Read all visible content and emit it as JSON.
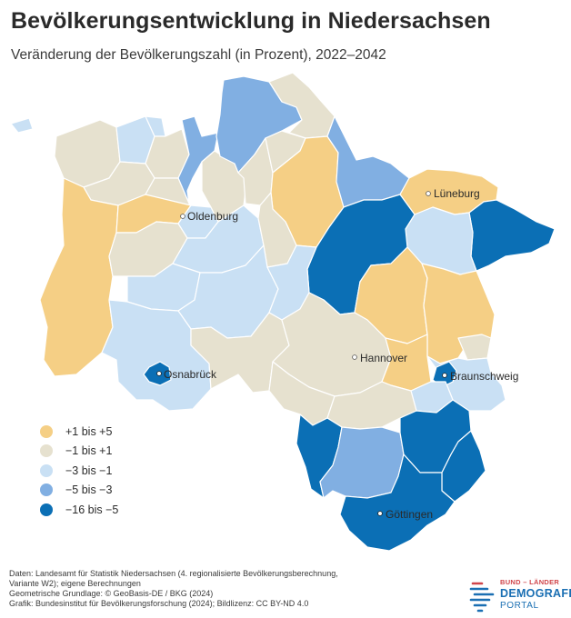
{
  "header": {
    "title": "Bevölkerungsentwicklung in Niedersachsen",
    "subtitle": "Veränderung der Bevölkerungszahl (in Prozent), 2022–2042"
  },
  "colors": {
    "plus1_plus5": "#f5cf85",
    "minus1_plus1": "#e6e1cf",
    "minus3_minus1": "#c9e0f4",
    "minus5_minus3": "#81afe2",
    "minus16_minus5": "#0b6fb5",
    "border": "#ffffff",
    "city_dot": "#ffffff"
  },
  "cities": [
    {
      "name": "Oldenburg"
    },
    {
      "name": "Lüneburg"
    },
    {
      "name": "Hannover"
    },
    {
      "name": "Osnabrück"
    },
    {
      "name": "Braunschweig"
    },
    {
      "name": "Göttingen"
    }
  ],
  "legend": {
    "items": [
      {
        "label": "+1 bis +5",
        "color": "#f5cf85"
      },
      {
        "label": "−1 bis +1",
        "color": "#e6e1cf"
      },
      {
        "label": "−3 bis −1",
        "color": "#c9e0f4"
      },
      {
        "label": "−5 bis −3",
        "color": "#81afe2"
      },
      {
        "label": "−16 bis −5",
        "color": "#0b6fb5"
      }
    ]
  },
  "footer": {
    "line1": "Daten: Landesamt für Statistik Niedersachsen (4. regionalisierte Bevölkerungsberechnung,",
    "line2": "Variante W2); eigene Berechnungen",
    "line3": "Geometrische Grundlage: © GeoBasis-DE / BKG (2024)",
    "line4": "Grafik: Bundesinstitut für Bevölkerungsforschung (2024); Bildlizenz: CC BY-ND 4.0"
  },
  "logo": {
    "top": "BUND – LÄNDER",
    "middle": "DEMOGRAFIE",
    "bottom": "PORTAL"
  }
}
